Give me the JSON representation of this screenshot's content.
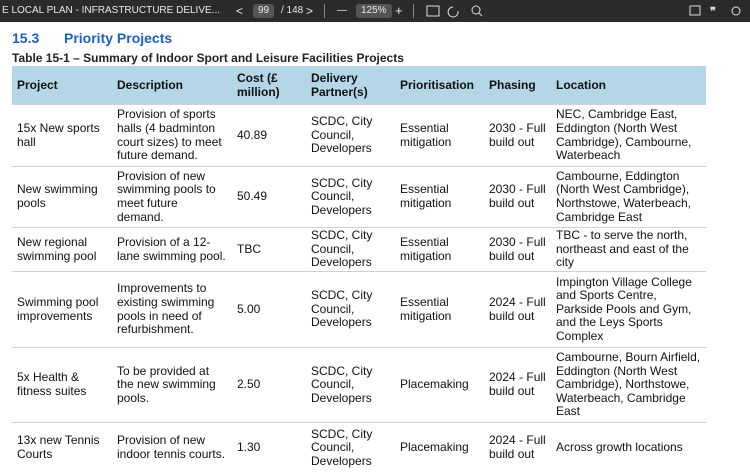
{
  "toolbar": {
    "document_title": "E LOCAL PLAN - INFRASTRUCTURE DELIVE...",
    "prev": "<",
    "page": "99",
    "page_total": "/ 148",
    "next": ">",
    "zoom_out": "—",
    "zoom": "125%",
    "zoom_in": "+"
  },
  "heading": {
    "number": "15.3",
    "title": "Priority Projects"
  },
  "caption": "Table 15-1 – Summary of Indoor Sport and Leisure Facilities Projects",
  "table": {
    "headers": [
      "Project",
      "Description",
      "Cost (£ million)",
      "Delivery Partner(s)",
      "Prioritisation",
      "Phasing",
      "Location"
    ],
    "rows": [
      [
        "15x New sports hall",
        "Provision of sports halls (4 badminton court sizes) to meet future demand.",
        "40.89",
        "SCDC, City Council, Developers",
        "Essential mitigation",
        "2030 - Full build out",
        "NEC, Cambridge East, Eddington (North West Cambridge), Cambourne, Waterbeach"
      ],
      [
        "New swimming pools",
        "Provision of new swimming pools to meet future demand.",
        "50.49",
        "SCDC, City Council, Developers",
        "Essential mitigation",
        "2030 - Full build out",
        "Cambourne, Eddington (North West Cambridge), Northstowe, Waterbeach, Cambridge East"
      ],
      [
        "New regional swimming pool",
        "Provision of a 12-lane swimming pool.",
        "TBC",
        "SCDC, City Council, Developers",
        "Essential mitigation",
        "2030 - Full build out",
        "TBC - to serve the north, northeast and east of the city"
      ],
      [
        "Swimming pool improvements",
        "Improvements to existing swimming pools in need of refurbishment.",
        "5.00",
        "SCDC, City Council, Developers",
        "Essential mitigation",
        "2024 - Full build out",
        "Impington Village College and Sports Centre, Parkside Pools and Gym, and the Leys Sports Complex"
      ],
      [
        "5x Health & fitness suites",
        "To be provided at the new swimming pools.",
        "2.50",
        "SCDC, City Council, Developers",
        "Placemaking",
        "2024 - Full build out",
        "Cambourne, Bourn Airfield, Eddington (North West Cambridge), Northstowe, Waterbeach, Cambridge East"
      ],
      [
        "13x new Tennis Courts",
        "Provision of new indoor tennis courts.",
        "1.30",
        "SCDC, City Council, Developers",
        "Placemaking",
        "2024 - Full build out",
        "Across growth locations"
      ]
    ]
  }
}
